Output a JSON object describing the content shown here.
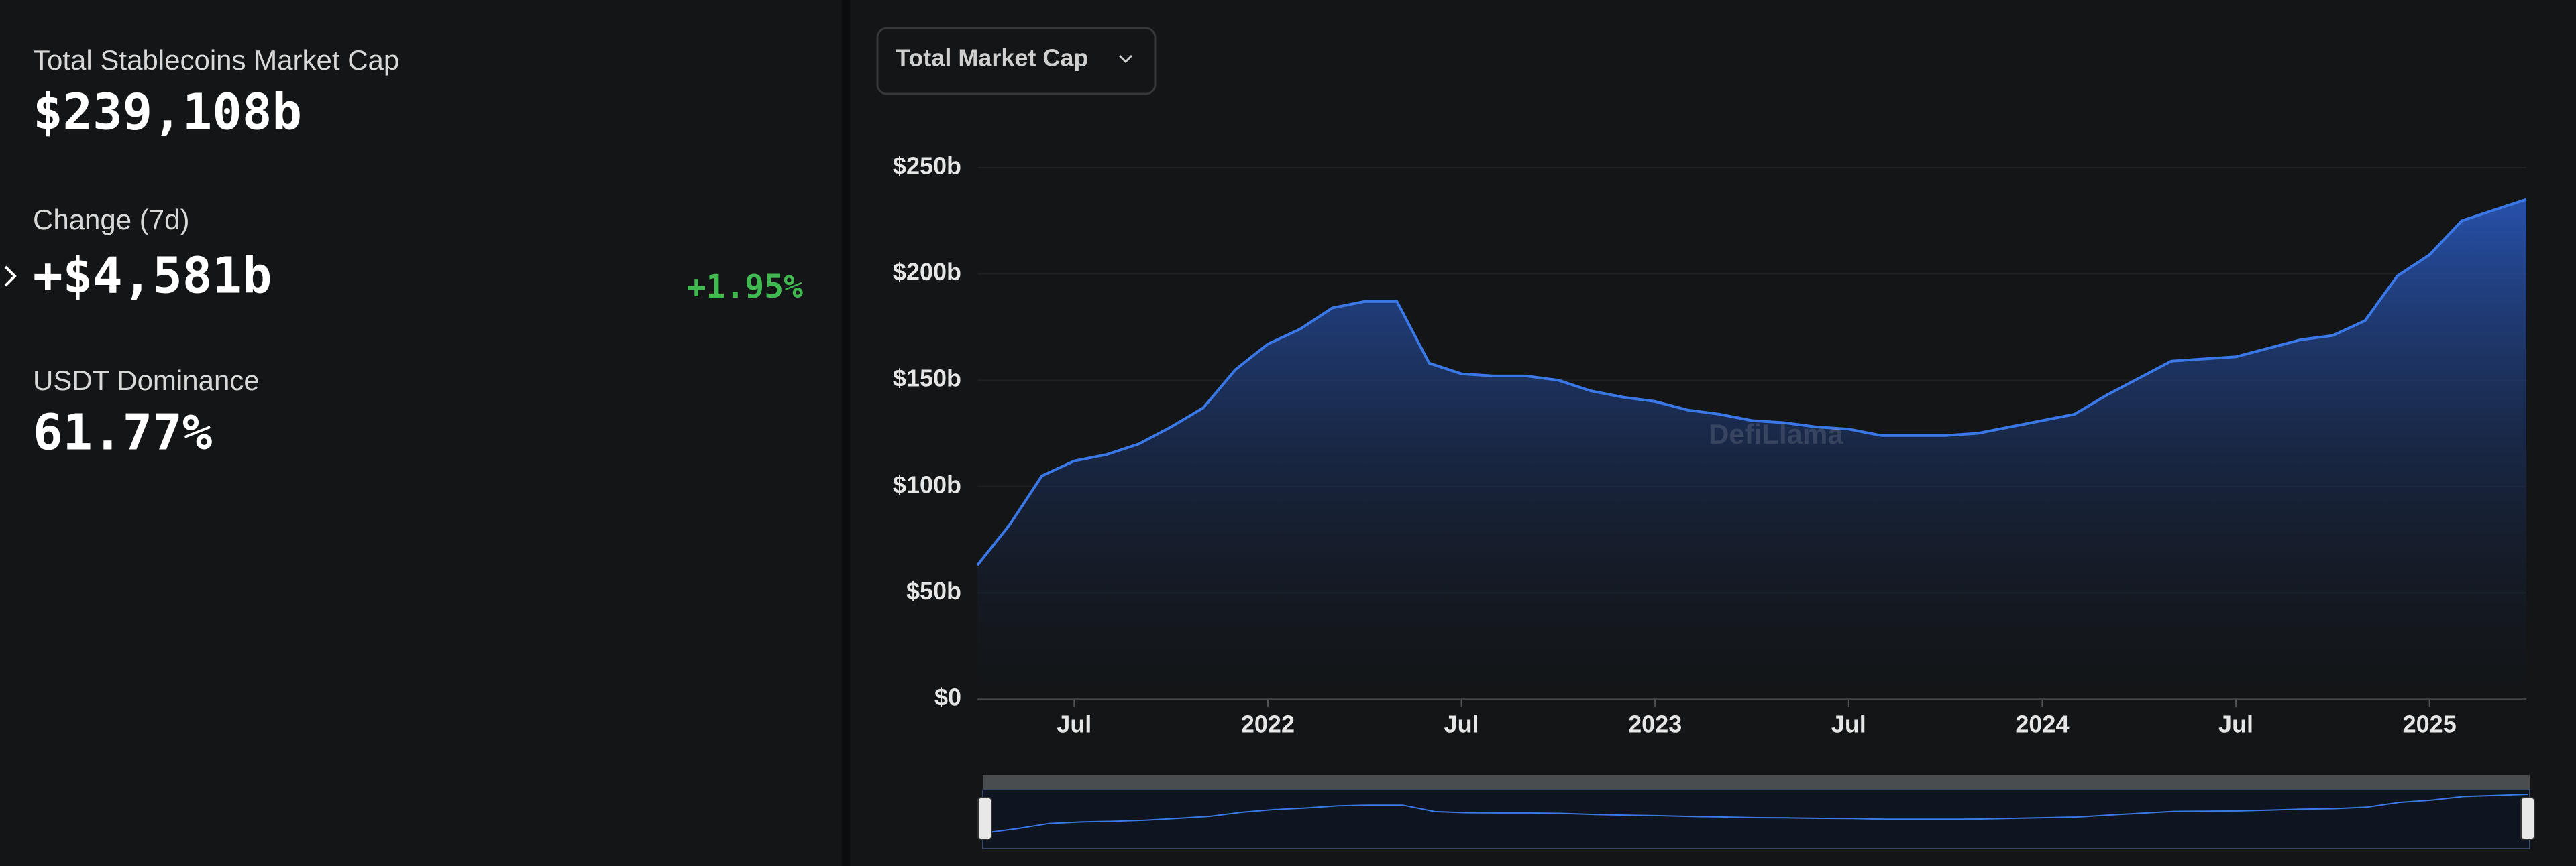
{
  "stats": [
    {
      "label": "Total Stablecoins Market Cap",
      "value": "$239,108b"
    },
    {
      "label": "Change (7d)",
      "value": "+$4,581b",
      "change": "+1.95%"
    },
    {
      "label": "USDT Dominance",
      "value": "61.77%"
    }
  ],
  "dropdown": "Total Market Cap",
  "watermark": "DefiLlama",
  "chart_data": {
    "type": "area",
    "x": [
      "2021-04",
      "2021-05",
      "2021-06",
      "2021-07",
      "2021-08",
      "2021-09",
      "2021-10",
      "2021-11",
      "2021-12",
      "2022-01",
      "2022-02",
      "2022-03",
      "2022-04",
      "2022-05",
      "2022-06",
      "2022-07",
      "2022-08",
      "2022-09",
      "2022-10",
      "2022-11",
      "2022-12",
      "2023-01",
      "2023-02",
      "2023-03",
      "2023-04",
      "2023-05",
      "2023-06",
      "2023-07",
      "2023-08",
      "2023-09",
      "2023-10",
      "2023-11",
      "2023-12",
      "2024-01",
      "2024-02",
      "2024-03",
      "2024-04",
      "2024-05",
      "2024-06",
      "2024-07",
      "2024-08",
      "2024-09",
      "2024-10",
      "2024-11",
      "2024-12",
      "2025-01",
      "2025-02",
      "2025-03",
      "2025-04"
    ],
    "values": [
      63,
      82,
      105,
      112,
      115,
      120,
      128,
      137,
      155,
      167,
      174,
      184,
      187,
      187,
      158,
      153,
      152,
      152,
      150,
      145,
      142,
      140,
      136,
      134,
      131,
      130,
      128,
      127,
      124,
      124,
      124,
      125,
      128,
      131,
      134,
      143,
      151,
      159,
      160,
      161,
      165,
      169,
      171,
      178,
      199,
      209,
      225,
      230,
      235
    ],
    "color": "#3b78e7",
    "xlim": [
      "2021-04",
      "2025-04"
    ],
    "xticks": [
      {
        "value": "2021-07",
        "label": "Jul"
      },
      {
        "value": "2022-01",
        "label": "2022"
      },
      {
        "value": "2022-07",
        "label": "Jul"
      },
      {
        "value": "2023-01",
        "label": "2023"
      },
      {
        "value": "2023-07",
        "label": "Jul"
      },
      {
        "value": "2024-01",
        "label": "2024"
      },
      {
        "value": "2024-07",
        "label": "Jul"
      },
      {
        "value": "2025-01",
        "label": "2025"
      }
    ],
    "ylim": [
      0,
      250
    ],
    "yticks": [
      {
        "value": 0,
        "label": "$0"
      },
      {
        "value": 50,
        "label": "$50b"
      },
      {
        "value": 100,
        "label": "$100b"
      },
      {
        "value": 150,
        "label": "$150b"
      },
      {
        "value": 200,
        "label": "$200b"
      },
      {
        "value": 250,
        "label": "$250b"
      }
    ],
    "grid": true
  }
}
